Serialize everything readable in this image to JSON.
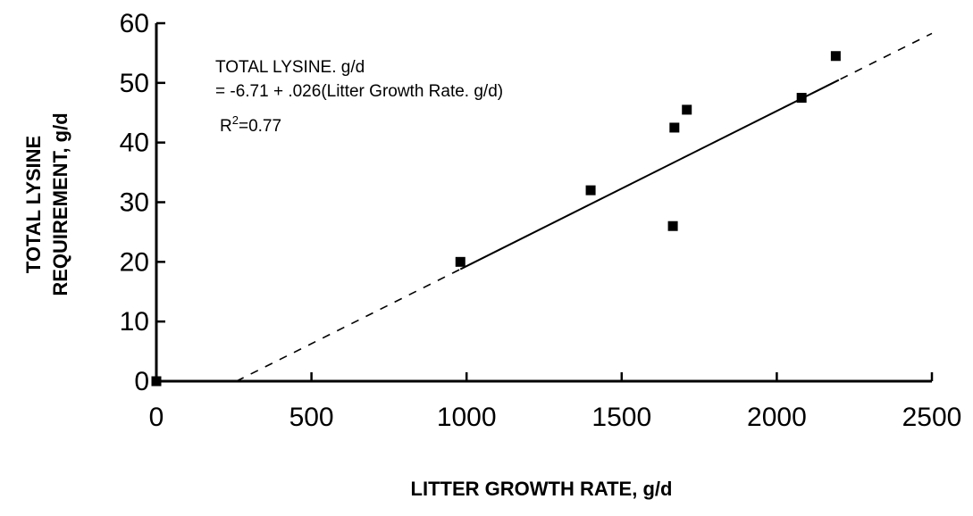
{
  "chart_data": {
    "type": "scatter",
    "title": "",
    "xlabel": "LITTER GROWTH RATE, g/d",
    "ylabel_lines": [
      "TOTAL LYSINE",
      "REQUIREMENT, g/d"
    ],
    "xlim": [
      0,
      2500
    ],
    "ylim": [
      0,
      60
    ],
    "x_ticks": [
      0,
      500,
      1000,
      1500,
      2000,
      2500
    ],
    "y_ticks": [
      0,
      10,
      20,
      30,
      40,
      50,
      60
    ],
    "grid": false,
    "points": [
      {
        "x": 0,
        "y": 0
      },
      {
        "x": 980,
        "y": 20
      },
      {
        "x": 1400,
        "y": 32
      },
      {
        "x": 1665,
        "y": 26
      },
      {
        "x": 1670,
        "y": 42.5
      },
      {
        "x": 1710,
        "y": 45.5
      },
      {
        "x": 2080,
        "y": 47.5
      },
      {
        "x": 2190,
        "y": 54.5
      }
    ],
    "regression": {
      "intercept": -6.71,
      "slope": 0.026,
      "solid_range": [
        980,
        2200
      ],
      "dashed_range": [
        258,
        2500
      ]
    },
    "annotations": {
      "line1": "TOTAL LYSINE. g/d",
      "line2": "= -6.71 + .026(Litter Growth Rate. g/d)",
      "r2_base": "R",
      "r2_sup": "2",
      "r2_rest": "=0.77"
    }
  }
}
